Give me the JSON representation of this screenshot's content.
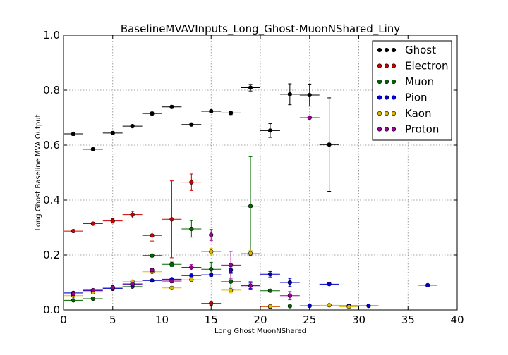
{
  "chart_data": {
    "type": "scatter",
    "title": "BaselineMVAVInputs_Long_Ghost-MuonNShared_Liny",
    "xlabel": "Long Ghost MuonNShared",
    "ylabel": "Long Ghost Baseline MVA Output",
    "xlim": [
      0,
      40
    ],
    "ylim": [
      0,
      1.0
    ],
    "xticks": [
      "0",
      "5",
      "10",
      "15",
      "20",
      "25",
      "30",
      "35",
      "40"
    ],
    "yticks": [
      "0.0",
      "0.2",
      "0.4",
      "0.6",
      "0.8",
      "1.0"
    ],
    "grid": true,
    "legend_position": "top-right",
    "x_error_halfwidth": 1,
    "series": [
      {
        "name": "Ghost",
        "color": "#000000",
        "points": [
          {
            "x": 1,
            "y": 0.641,
            "err": 0.006
          },
          {
            "x": 3,
            "y": 0.585,
            "err": 0.005
          },
          {
            "x": 5,
            "y": 0.644,
            "err": 0.005
          },
          {
            "x": 7,
            "y": 0.669,
            "err": 0.005
          },
          {
            "x": 9,
            "y": 0.715,
            "err": 0.005
          },
          {
            "x": 11,
            "y": 0.739,
            "err": 0.005
          },
          {
            "x": 13,
            "y": 0.675,
            "err": 0.005
          },
          {
            "x": 15,
            "y": 0.723,
            "err": 0.005
          },
          {
            "x": 17,
            "y": 0.717,
            "err": 0.006
          },
          {
            "x": 19,
            "y": 0.809,
            "err": 0.012
          },
          {
            "x": 21,
            "y": 0.653,
            "err": 0.025
          },
          {
            "x": 23,
            "y": 0.785,
            "err": 0.038
          },
          {
            "x": 25,
            "y": 0.782,
            "err": 0.04
          },
          {
            "x": 27,
            "y": 0.602,
            "err": 0.17
          }
        ]
      },
      {
        "name": "Electron",
        "color": "#cc0000",
        "points": [
          {
            "x": 1,
            "y": 0.287,
            "err": 0.004
          },
          {
            "x": 3,
            "y": 0.314,
            "err": 0.005
          },
          {
            "x": 5,
            "y": 0.324,
            "err": 0.008
          },
          {
            "x": 7,
            "y": 0.347,
            "err": 0.012
          },
          {
            "x": 9,
            "y": 0.271,
            "err": 0.02
          },
          {
            "x": 11,
            "y": 0.33,
            "err": 0.14
          },
          {
            "x": 13,
            "y": 0.465,
            "err": 0.03
          },
          {
            "x": 15,
            "y": 0.024,
            "err": 0.008
          },
          {
            "x": 21,
            "y": 0.012,
            "err": 0.005
          }
        ]
      },
      {
        "name": "Muon",
        "color": "#006600",
        "points": [
          {
            "x": 1,
            "y": 0.035,
            "err": 0.002
          },
          {
            "x": 3,
            "y": 0.041,
            "err": 0.002
          },
          {
            "x": 5,
            "y": 0.077,
            "err": 0.003
          },
          {
            "x": 7,
            "y": 0.085,
            "err": 0.004
          },
          {
            "x": 9,
            "y": 0.198,
            "err": 0.005
          },
          {
            "x": 11,
            "y": 0.166,
            "err": 0.008
          },
          {
            "x": 13,
            "y": 0.295,
            "err": 0.03
          },
          {
            "x": 15,
            "y": 0.148,
            "err": 0.025
          },
          {
            "x": 17,
            "y": 0.103,
            "err": 0.03
          },
          {
            "x": 19,
            "y": 0.378,
            "err": 0.18
          },
          {
            "x": 21,
            "y": 0.07,
            "err": 0.005
          },
          {
            "x": 23,
            "y": 0.014,
            "err": 0.004
          }
        ]
      },
      {
        "name": "Pion",
        "color": "#0000cc",
        "points": [
          {
            "x": 1,
            "y": 0.062,
            "err": 0.002
          },
          {
            "x": 3,
            "y": 0.07,
            "err": 0.002
          },
          {
            "x": 5,
            "y": 0.078,
            "err": 0.002
          },
          {
            "x": 7,
            "y": 0.092,
            "err": 0.003
          },
          {
            "x": 9,
            "y": 0.107,
            "err": 0.003
          },
          {
            "x": 11,
            "y": 0.112,
            "err": 0.004
          },
          {
            "x": 13,
            "y": 0.125,
            "err": 0.005
          },
          {
            "x": 15,
            "y": 0.128,
            "err": 0.006
          },
          {
            "x": 17,
            "y": 0.145,
            "err": 0.008
          },
          {
            "x": 19,
            "y": 0.088,
            "err": 0.01
          },
          {
            "x": 21,
            "y": 0.13,
            "err": 0.01
          },
          {
            "x": 23,
            "y": 0.1,
            "err": 0.015
          },
          {
            "x": 25,
            "y": 0.015,
            "err": 0.004
          },
          {
            "x": 27,
            "y": 0.094,
            "err": 0.004
          },
          {
            "x": 29,
            "y": 0.015,
            "err": 0.003
          },
          {
            "x": 31,
            "y": 0.015,
            "err": 0.003
          },
          {
            "x": 37,
            "y": 0.09,
            "err": 0.004
          }
        ]
      },
      {
        "name": "Kaon",
        "color": "#ddbb00",
        "points": [
          {
            "x": 1,
            "y": 0.052,
            "err": 0.002
          },
          {
            "x": 3,
            "y": 0.065,
            "err": 0.002
          },
          {
            "x": 5,
            "y": 0.082,
            "err": 0.003
          },
          {
            "x": 7,
            "y": 0.103,
            "err": 0.004
          },
          {
            "x": 9,
            "y": 0.139,
            "err": 0.005
          },
          {
            "x": 11,
            "y": 0.08,
            "err": 0.005
          },
          {
            "x": 13,
            "y": 0.11,
            "err": 0.008
          },
          {
            "x": 15,
            "y": 0.212,
            "err": 0.012
          },
          {
            "x": 17,
            "y": 0.072,
            "err": 0.01
          },
          {
            "x": 19,
            "y": 0.206,
            "err": 0.01
          },
          {
            "x": 21,
            "y": 0.013,
            "err": 0.004
          },
          {
            "x": 27,
            "y": 0.017,
            "err": 0.003
          },
          {
            "x": 29,
            "y": 0.012,
            "err": 0.003
          }
        ]
      },
      {
        "name": "Proton",
        "color": "#990099",
        "points": [
          {
            "x": 1,
            "y": 0.058,
            "err": 0.002
          },
          {
            "x": 3,
            "y": 0.072,
            "err": 0.003
          },
          {
            "x": 5,
            "y": 0.082,
            "err": 0.003
          },
          {
            "x": 7,
            "y": 0.095,
            "err": 0.004
          },
          {
            "x": 9,
            "y": 0.145,
            "err": 0.006
          },
          {
            "x": 11,
            "y": 0.105,
            "err": 0.006
          },
          {
            "x": 13,
            "y": 0.155,
            "err": 0.01
          },
          {
            "x": 15,
            "y": 0.273,
            "err": 0.02
          },
          {
            "x": 17,
            "y": 0.163,
            "err": 0.05
          },
          {
            "x": 19,
            "y": 0.088,
            "err": 0.015
          },
          {
            "x": 23,
            "y": 0.052,
            "err": 0.015
          },
          {
            "x": 25,
            "y": 0.7,
            "err": 0.004
          }
        ]
      }
    ]
  }
}
